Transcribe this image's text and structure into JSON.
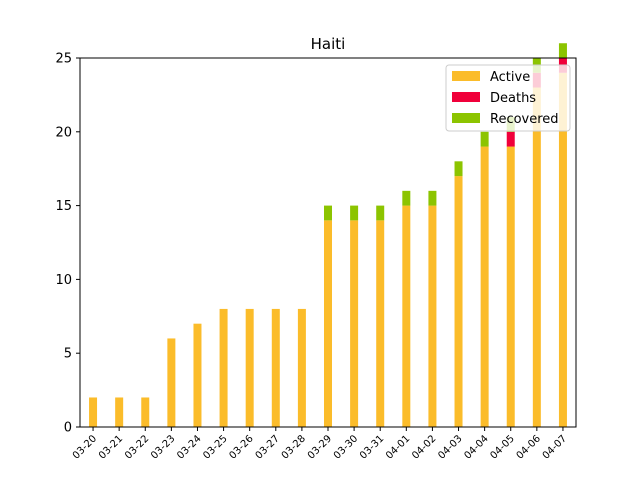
{
  "chart_data": {
    "type": "bar",
    "stacked": true,
    "title": "Haiti",
    "xlabel": "",
    "ylabel": "",
    "ylim": [
      0,
      25
    ],
    "yticks": [
      0,
      5,
      10,
      15,
      20,
      25
    ],
    "grid": false,
    "legend_position": "top-right",
    "categories": [
      "03-20",
      "03-21",
      "03-22",
      "03-23",
      "03-24",
      "03-25",
      "03-26",
      "03-27",
      "03-28",
      "03-29",
      "03-30",
      "03-31",
      "04-01",
      "04-02",
      "04-03",
      "04-04",
      "04-05",
      "04-06",
      "04-07"
    ],
    "series": [
      {
        "name": "Active",
        "color": "#fbbc2a",
        "values": [
          2,
          2,
          2,
          6,
          7,
          8,
          8,
          8,
          8,
          14,
          14,
          14,
          15,
          15,
          17,
          19,
          19,
          23,
          24
        ]
      },
      {
        "name": "Deaths",
        "color": "#f0003a",
        "values": [
          0,
          0,
          0,
          0,
          0,
          0,
          0,
          0,
          0,
          0,
          0,
          0,
          0,
          0,
          0,
          0,
          1,
          1,
          1
        ]
      },
      {
        "name": "Recovered",
        "color": "#8cc400",
        "values": [
          0,
          0,
          0,
          0,
          0,
          0,
          0,
          0,
          0,
          1,
          1,
          1,
          1,
          1,
          1,
          1,
          1,
          1,
          1
        ]
      }
    ]
  }
}
